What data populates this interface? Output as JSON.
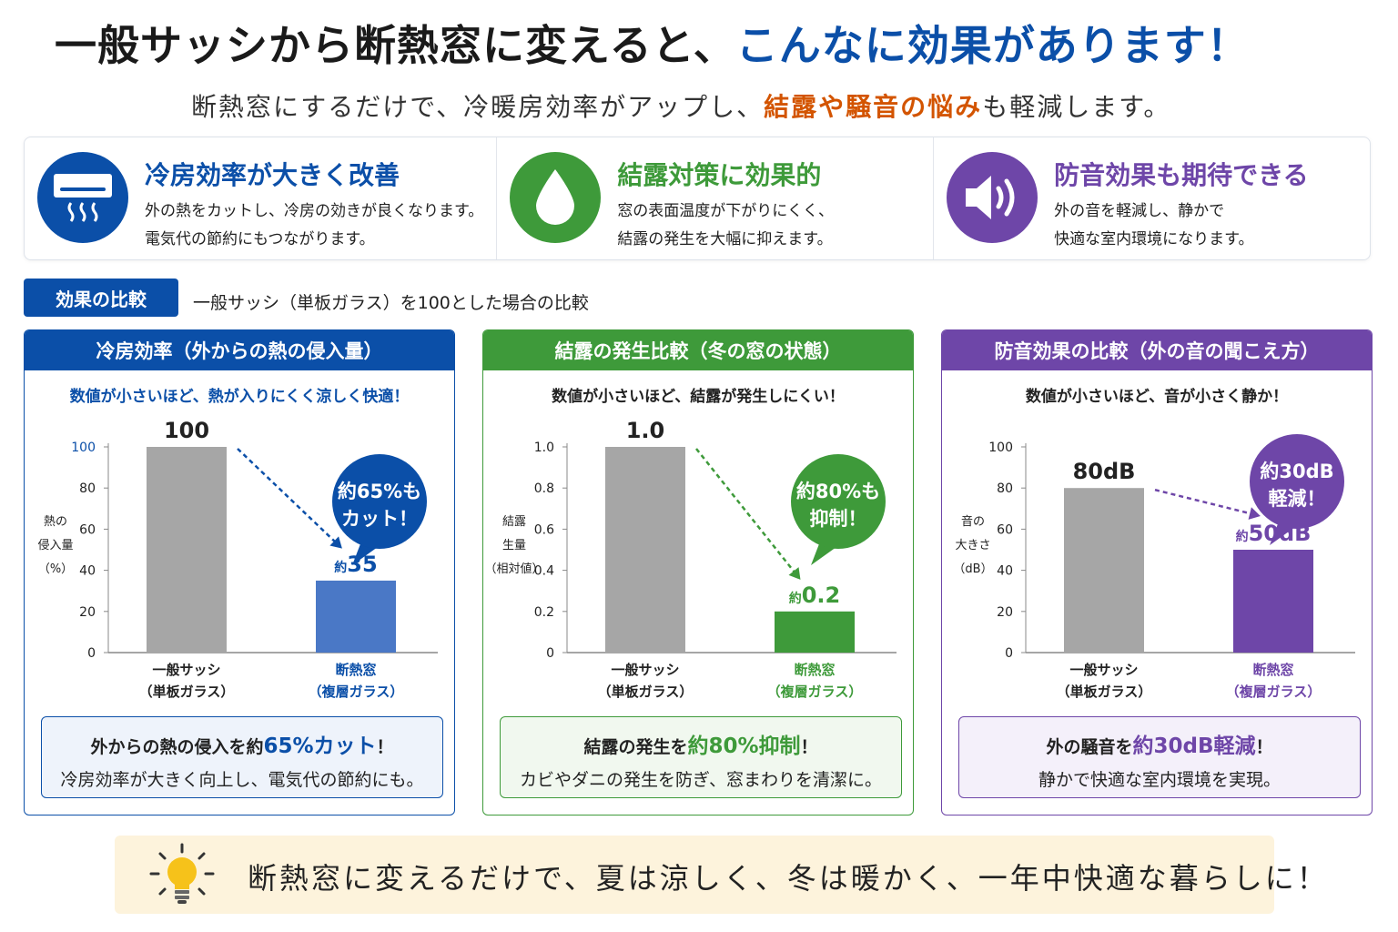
{
  "header": {
    "title_main": "一般サッシから断熱窓に変えると、",
    "title_highlight": "こんなに効果があります！",
    "subtitle_pre": "断熱窓にするだけで、冷暖房効率がアップし、",
    "subtitle_highlight": "結露や騒音の悩み",
    "subtitle_post": "も軽減します。"
  },
  "features": [
    {
      "title": "冷房効率が大きく改善",
      "line1": "外の熱をカットし、冷房の効きが良くなります。",
      "line2": "電気代の節約にもつながります。",
      "color": "#0b4fa8",
      "icon": "air-conditioner-icon"
    },
    {
      "title": "結露対策に効果的",
      "line1": "窓の表面温度が下がりにくく、",
      "line2": "結露の発生を大幅に抑えます。",
      "color": "#3e9a3a",
      "icon": "water-drop-icon"
    },
    {
      "title": "防音効果も期待できる",
      "line1": "外の音を軽減し、静かで",
      "line2": "快適な室内環境になります。",
      "color": "#6e46a8",
      "icon": "speaker-icon"
    }
  ],
  "comparison": {
    "tag": "効果の比較",
    "note": "一般サッシ（単板ガラス）を100とした場合の比較"
  },
  "panels": [
    {
      "header": "冷房効率（外からの熱の侵入量）",
      "note": "数値が小さいほど、熱が入りにくく涼しく快適！",
      "ylabel_lines": [
        "熱の",
        "侵入量",
        "（%）"
      ],
      "cat1_lines": [
        "一般サッシ",
        "（単板ガラス）"
      ],
      "cat2_lines": [
        "断熱窓",
        "（複層ガラス）"
      ],
      "label1": "100",
      "label2_prefix": "約",
      "label2": "35",
      "bubble_lines": [
        "約65%も",
        "カット！"
      ],
      "summary_pre": "外からの熱の侵入を約",
      "summary_hl": "65%カット",
      "summary_post": "！",
      "summary_line2": "冷房効率が大きく向上し、電気代の節約にも。",
      "color": "#0b4fa8",
      "bar2_color": "#4a78c6",
      "summary_bg": "#eef3fb"
    },
    {
      "header": "結露の発生比較（冬の窓の状態）",
      "note": "数値が小さいほど、結露が発生しにくい！",
      "ylabel_lines": [
        "結露",
        "生量",
        "（相対値）"
      ],
      "cat1_lines": [
        "一般サッシ",
        "（単板ガラス）"
      ],
      "cat2_lines": [
        "断熱窓",
        "（複層ガラス）"
      ],
      "label1": "1.0",
      "label2_prefix": "約",
      "label2": "0.2",
      "bubble_lines": [
        "約80%も",
        "抑制！"
      ],
      "summary_pre": "結露の発生を",
      "summary_hl": "約80%抑制",
      "summary_post": "！",
      "summary_line2": "カビやダニの発生を防ぎ、窓まわりを清潔に。",
      "color": "#3e9a3a",
      "bar2_color": "#3e9a3a",
      "summary_bg": "#f1f8ef"
    },
    {
      "header": "防音効果の比較（外の音の聞こえ方）",
      "note": "数値が小さいほど、音が小さく静か！",
      "ylabel_lines": [
        "音の",
        "大きさ",
        "（dB）"
      ],
      "cat1_lines": [
        "一般サッシ",
        "（単板ガラス）"
      ],
      "cat2_lines": [
        "断熱窓",
        "（複層ガラス）"
      ],
      "label1": "80dB",
      "label2_prefix": "約",
      "label2": "50dB",
      "bubble_lines": [
        "約30dB",
        "軽減！"
      ],
      "summary_pre": "外の騒音を",
      "summary_hl": "約30dB軽減",
      "summary_post": "！",
      "summary_line2": "静かで快適な室内環境を実現。",
      "color": "#6e46a8",
      "bar2_color": "#6e46a8",
      "summary_bg": "#f4f0fa"
    }
  ],
  "footer": {
    "text": "断熱窓に変えるだけで、夏は涼しく、冬は暖かく、一年中快適な暮らしに！",
    "icon": "light-bulb-icon"
  },
  "chart_data": [
    {
      "type": "bar",
      "categories": [
        "一般サッシ（単板ガラス）",
        "断熱窓（複層ガラス）"
      ],
      "values": [
        100,
        35
      ],
      "ylim": [
        0,
        100
      ],
      "yticks": [
        "0",
        "20",
        "40",
        "60",
        "80",
        "100"
      ],
      "yvalues": [
        0,
        20,
        40,
        60,
        80,
        100
      ],
      "title": "冷房効率（外からの熱の侵入量）",
      "ylabel": "熱の侵入量（%）",
      "annotation": "約65%もカット！"
    },
    {
      "type": "bar",
      "categories": [
        "一般サッシ（単板ガラス）",
        "断熱窓（複層ガラス）"
      ],
      "values": [
        1.0,
        0.2
      ],
      "ylim": [
        0,
        1.0
      ],
      "yticks": [
        "0",
        "0.2",
        "0.4",
        "0.6",
        "0.8",
        "1.0"
      ],
      "yvalues": [
        0,
        0.2,
        0.4,
        0.6,
        0.8,
        1.0
      ],
      "title": "結露の発生比較（冬の窓の状態）",
      "ylabel": "結露生量（相対値）",
      "annotation": "約80%も抑制！"
    },
    {
      "type": "bar",
      "categories": [
        "一般サッシ（単板ガラス）",
        "断熱窓（複層ガラス）"
      ],
      "values": [
        80,
        50
      ],
      "ylim": [
        0,
        100
      ],
      "yticks": [
        "0",
        "20",
        "40",
        "60",
        "80",
        "100"
      ],
      "yvalues": [
        0,
        20,
        40,
        60,
        80,
        100
      ],
      "title": "防音効果の比較（外の音の聞こえ方）",
      "ylabel": "音の大きさ（dB）",
      "annotation": "約30dB軽減！"
    }
  ]
}
